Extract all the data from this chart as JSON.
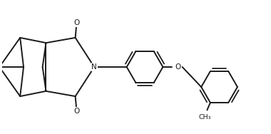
{
  "bg_color": "#ffffff",
  "line_color": "#1a1a1a",
  "line_width": 1.4,
  "figsize": [
    3.8,
    1.88
  ],
  "dpi": 100,
  "xlim": [
    0,
    10
  ],
  "ylim": [
    0,
    5
  ]
}
